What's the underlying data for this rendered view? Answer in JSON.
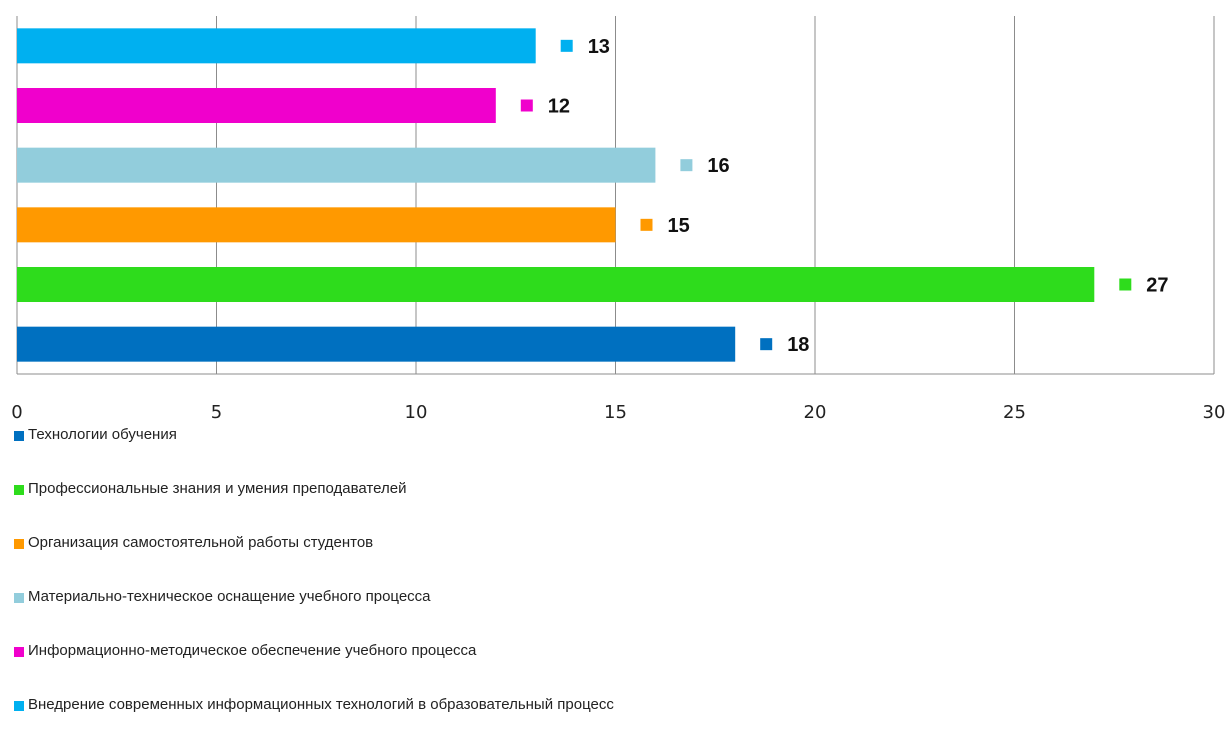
{
  "chart_data": {
    "type": "bar",
    "orientation": "horizontal",
    "categories": [
      "Технологии обучения",
      "Профессиональные знания и умения преподавателей",
      "Организация самостоятельной работы студентов",
      "Материально-техническое оснащение учебного процесса",
      "Информационно-методическое обеспечение учебного процесса",
      "Внедрение современных информационных технологий в образовательный процесс"
    ],
    "values": [
      18,
      27,
      15,
      16,
      12,
      13
    ],
    "colors": [
      "#0070c0",
      "#2edc1c",
      "#ff9900",
      "#92cddc",
      "#f000cc",
      "#00b0f0"
    ],
    "value_labels": [
      "18",
      "27",
      "15",
      "16",
      "12",
      "13"
    ],
    "x_ticks": [
      "0",
      "5",
      "10",
      "15",
      "20",
      "25",
      "30"
    ],
    "xlim": [
      0,
      30
    ],
    "grid": "vertical",
    "legend_position": "bottom",
    "title": "",
    "xlabel": "",
    "ylabel": ""
  }
}
